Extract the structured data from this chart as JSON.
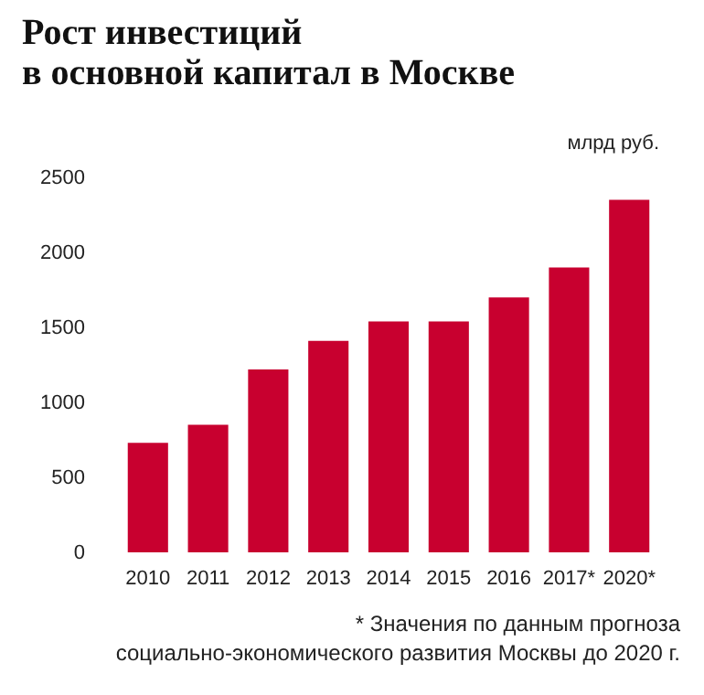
{
  "chart_data": {
    "type": "bar",
    "title": "Рост инвестиций\nв основной капитал в Москве",
    "ylabel": "млрд руб.",
    "categories": [
      "2010",
      "2011",
      "2012",
      "2013",
      "2014",
      "2015",
      "2016",
      "2017*",
      "2020*"
    ],
    "values": [
      730,
      850,
      1220,
      1410,
      1540,
      1540,
      1700,
      1900,
      2350
    ],
    "color": "#c8002f",
    "ylim": [
      0,
      2500
    ],
    "yticks": [
      0,
      500,
      1000,
      1500,
      2000,
      2500
    ],
    "grid": false,
    "annotations": [
      "* Значения по данным прогноза\nсоциально-экономического развития Москвы до 2020 г."
    ]
  }
}
